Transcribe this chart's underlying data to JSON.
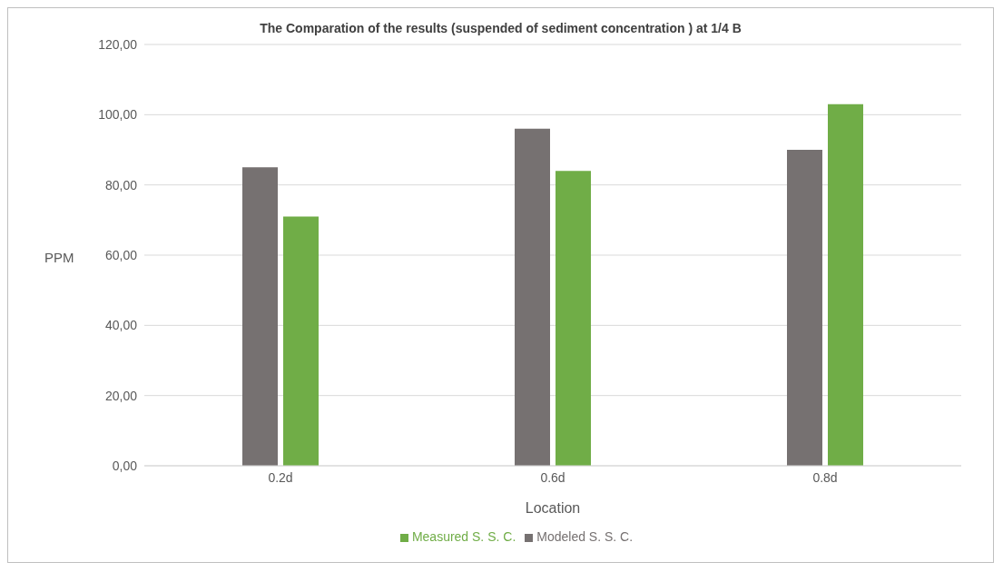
{
  "chart_data": {
    "type": "bar",
    "title": "The Comparation of the results (suspended of sediment concentration ) at 1/4 B",
    "xlabel": "Location",
    "ylabel": "PPM",
    "categories": [
      "0.2d",
      "0.6d",
      "0.8d"
    ],
    "series": [
      {
        "name": "Modeled S. S. C.",
        "color": "#767171",
        "values": [
          85,
          96,
          90
        ]
      },
      {
        "name": "Measured S. S. C.",
        "color": "#70ad47",
        "values": [
          71,
          84,
          103
        ]
      }
    ],
    "ylim": [
      0,
      120
    ],
    "yticks": [
      {
        "value": 0,
        "label": "0,00"
      },
      {
        "value": 20,
        "label": "20,00"
      },
      {
        "value": 40,
        "label": "40,00"
      },
      {
        "value": 60,
        "label": "60,00"
      },
      {
        "value": 80,
        "label": "80,00"
      },
      {
        "value": 100,
        "label": "100,00"
      },
      {
        "value": 120,
        "label": "120,00"
      }
    ],
    "grid": "y",
    "legend": "bottom"
  }
}
